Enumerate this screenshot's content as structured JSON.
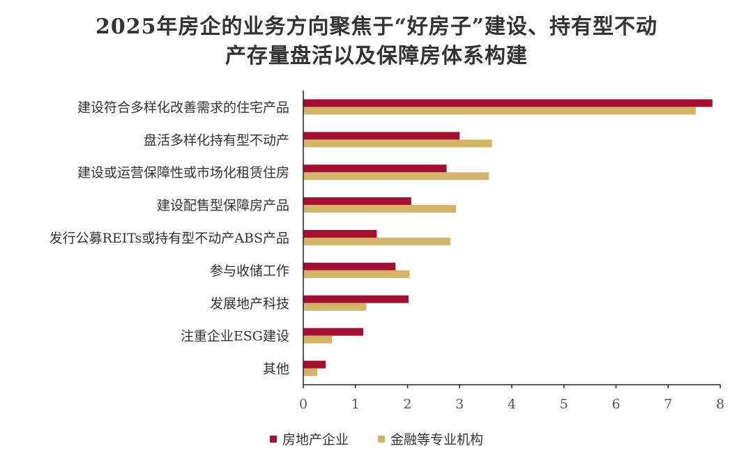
{
  "chart_data": {
    "type": "bar",
    "orientation": "horizontal",
    "title_line1": "2025年房企的业务方向聚焦于“好房子”建设、持有型不动",
    "title_line2": "产存量盘活以及保障房体系构建",
    "categories": [
      "建设符合多样化改善需求的住宅产品",
      "盘活多样化持有型不动产",
      "建设或运营保障性或市场化租赁住房",
      "建设配售型保障房产品",
      "发行公募REITs或持有型不动产ABS产品",
      "参与收储工作",
      "发展地产科技",
      "注重企业ESG建设",
      "其他"
    ],
    "series": [
      {
        "name": "房地产企业",
        "color": "#A50F32",
        "values": [
          7.85,
          3.0,
          2.75,
          2.07,
          1.41,
          1.77,
          2.02,
          1.15,
          0.43
        ]
      },
      {
        "name": "金融等专业机构",
        "color": "#D4B466",
        "values": [
          7.53,
          3.62,
          3.56,
          2.93,
          2.82,
          2.04,
          1.21,
          0.55,
          0.27
        ]
      }
    ],
    "xlim": [
      0,
      8
    ],
    "xticks": [
      "0",
      "1",
      "2",
      "3",
      "4",
      "5",
      "6",
      "7",
      "8"
    ],
    "legend_position": "bottom",
    "grid": false
  }
}
